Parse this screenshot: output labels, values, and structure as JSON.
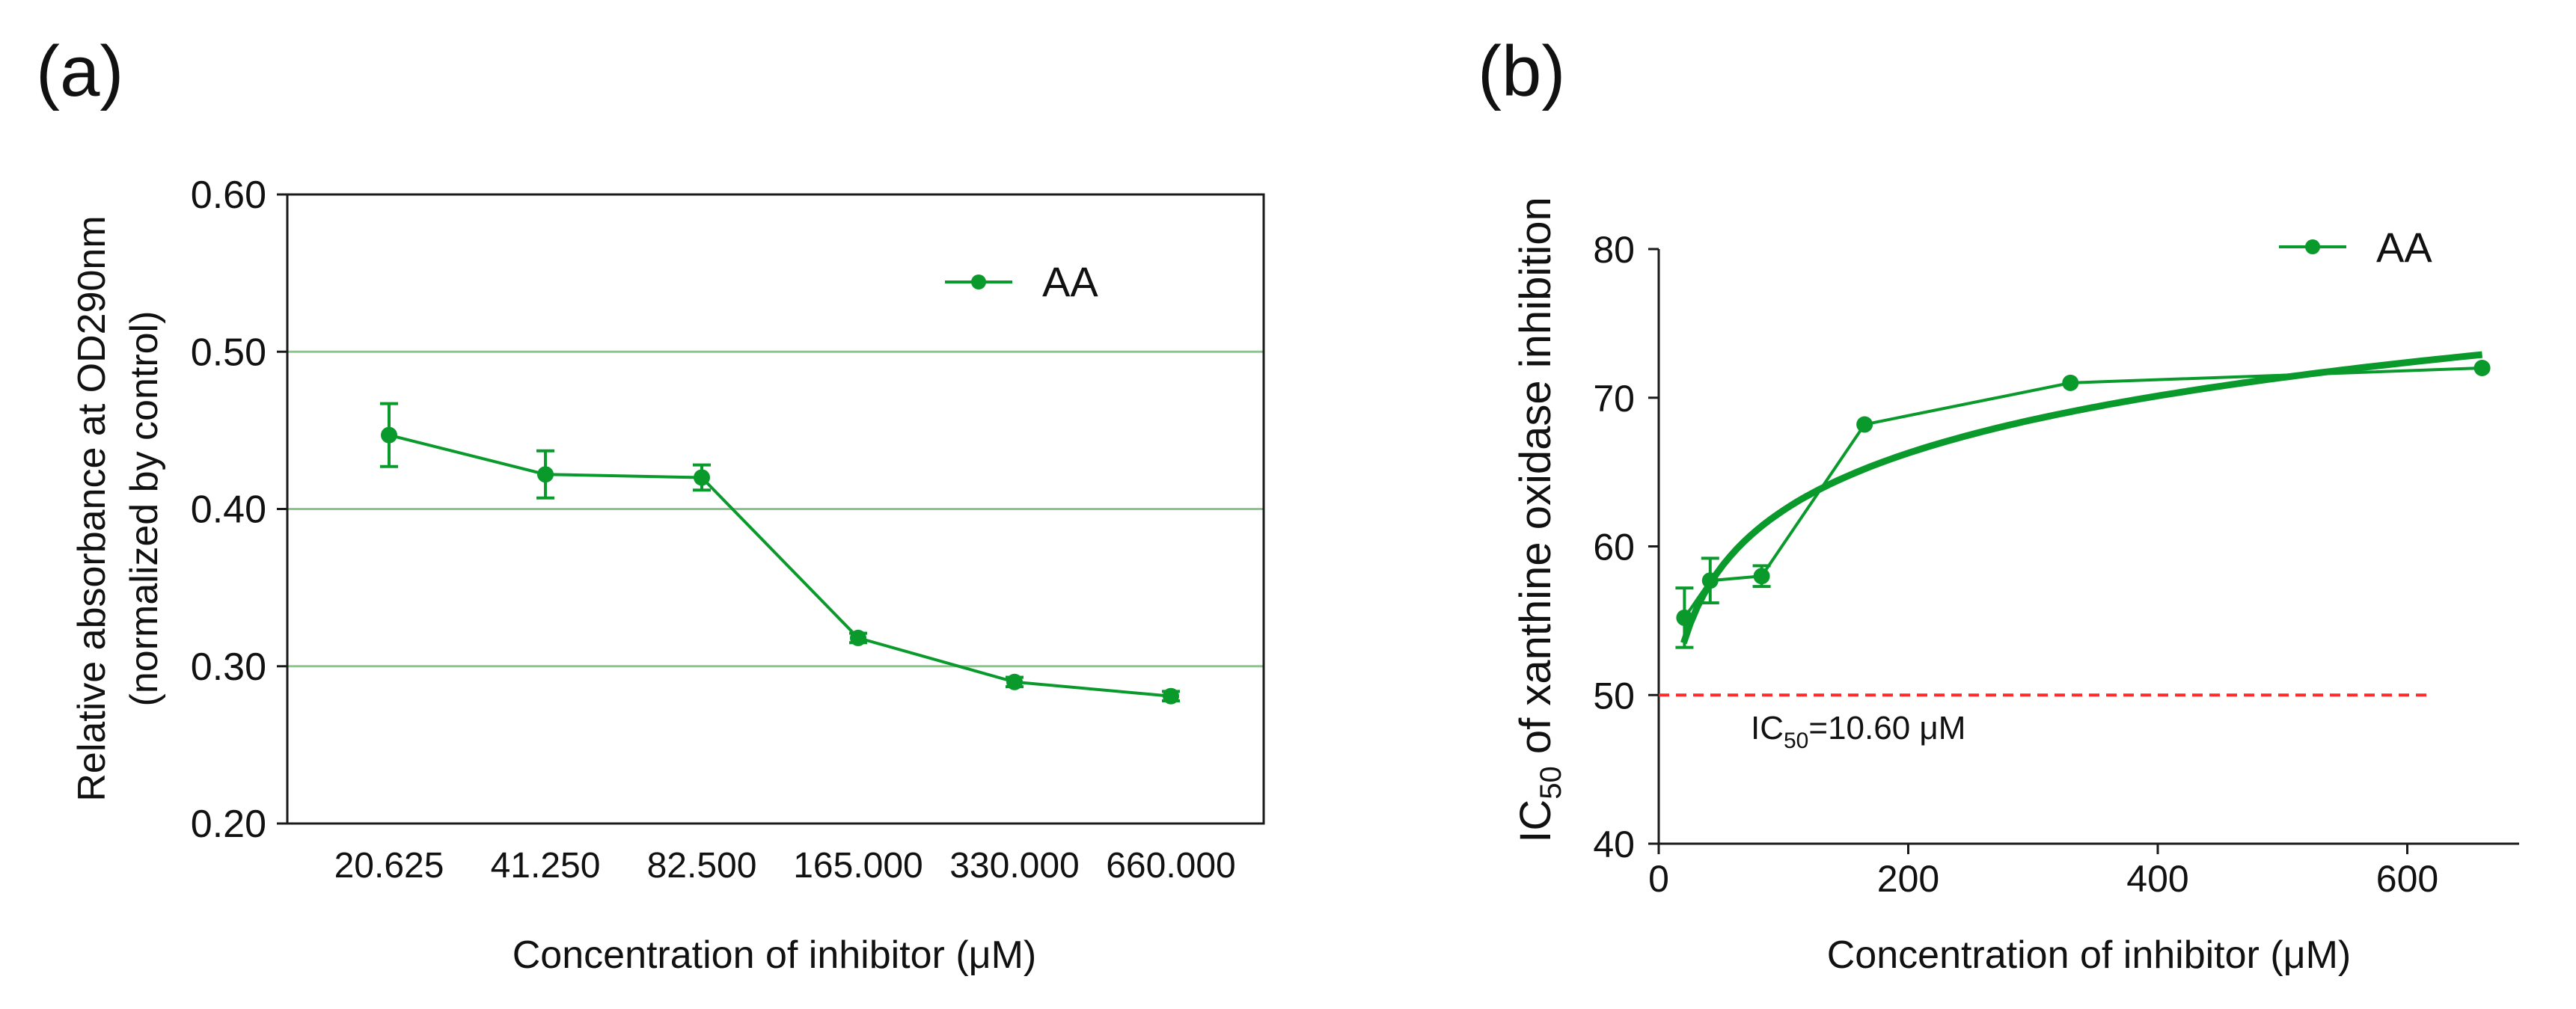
{
  "panels": {
    "a": {
      "label": "(a)"
    },
    "b": {
      "label": "(b)"
    }
  },
  "colors": {
    "series": "#0a9a2c",
    "grid": "#88c78a",
    "reference": "#ff2a2a",
    "axis": "#1a1a1a"
  },
  "chart_data": [
    {
      "type": "line",
      "title": "",
      "categories": [
        "20.625",
        "41.250",
        "82.500",
        "165.000",
        "330.000",
        "660.000"
      ],
      "series": [
        {
          "name": "AA",
          "values": [
            0.447,
            0.422,
            0.42,
            0.318,
            0.29,
            0.281
          ],
          "errors": [
            0.02,
            0.015,
            0.008,
            0.003,
            0.003,
            0.003
          ]
        }
      ],
      "xlabel": "Concentration of inhibitor (μM)",
      "ylabel_line1": "Relative absorbance at OD290nm",
      "ylabel_line2": "(normalized by control)",
      "ylim": [
        0.2,
        0.6
      ],
      "yticks": [
        "0.20",
        "0.30",
        "0.40",
        "0.50",
        "0.60"
      ],
      "gridlines": [
        0.3,
        0.4,
        0.5
      ],
      "legend": {
        "position": "top-right",
        "entries": [
          "AA"
        ]
      }
    },
    {
      "type": "line",
      "title": "",
      "series": [
        {
          "name": "AA",
          "x": [
            20.625,
            41.25,
            82.5,
            165,
            330,
            660
          ],
          "values": [
            55.2,
            57.7,
            58.0,
            68.2,
            71.0,
            72.0
          ],
          "errors": [
            2.0,
            1.5,
            0.7,
            0,
            0,
            0
          ]
        }
      ],
      "fit_curve": {
        "kind": "log",
        "x_start": 20,
        "x_end": 660,
        "y_start": 53.5,
        "y_end": 72.9
      },
      "reference_line": {
        "y": 50,
        "x_start": 0,
        "x_end": 620
      },
      "ic50_label": {
        "prefix": "IC",
        "sub": "50",
        "suffix": "=10.60 μM"
      },
      "xlabel": "Concentration of inhibitor (μM)",
      "ylabel": {
        "prefix": "IC",
        "sub": "50",
        "suffix": " of xanthine oxidase inhibition"
      },
      "xlim": [
        0,
        700
      ],
      "ylim": [
        40,
        82
      ],
      "xticks": [
        "0",
        "200",
        "400",
        "600"
      ],
      "yticks": [
        "40",
        "50",
        "60",
        "70",
        "80"
      ],
      "legend": {
        "position": "top-right",
        "entries": [
          "AA"
        ]
      }
    }
  ]
}
